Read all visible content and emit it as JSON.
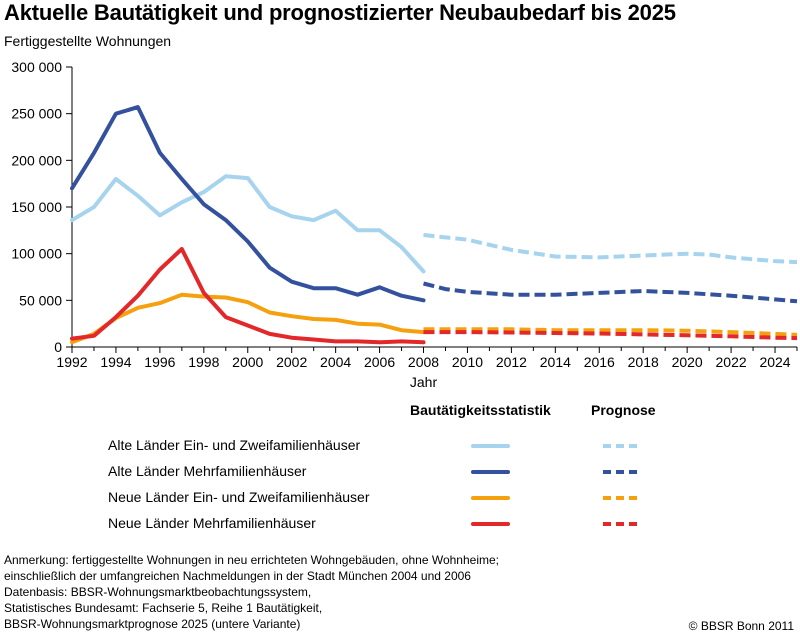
{
  "title": "Aktuelle Bautätigkeit und prognostizierter Neubaubedarf bis 2025",
  "ylabel": "Fertiggestellte Wohnungen",
  "xlabel": "Jahr",
  "legend": {
    "header_actual": "Bautätigkeitsstatistik",
    "header_forecast": "Prognose"
  },
  "footnotes": [
    "Anmerkung: fertiggestellte Wohnungen in neu errichteten Wohngebäuden, ohne Wohnheime;",
    "einschließlich der umfangreichen Nachmeldungen in der Stadt München 2004 und 2006",
    "Datenbasis: BBSR-Wohnungsmarktbeobachtungssystem,",
    "Statistisches Bundesamt: Fachserie 5, Reihe 1 Bautätigkeit,",
    "BBSR-Wohnungsmarktprognose 2025 (untere Variante)"
  ],
  "copyright": "© BBSR Bonn 2011",
  "chart_data": {
    "type": "line",
    "title": "Aktuelle Bautätigkeit und prognostizierter Neubaubedarf bis 2025",
    "ylabel": "Fertiggestellte Wohnungen",
    "xlabel": "Jahr",
    "xlim": [
      1992,
      2025
    ],
    "ylim": [
      0,
      300000
    ],
    "xticks": [
      1992,
      1994,
      1996,
      1998,
      2000,
      2002,
      2004,
      2006,
      2008,
      2010,
      2012,
      2014,
      2016,
      2018,
      2020,
      2022,
      2024
    ],
    "yticks": [
      0,
      50000,
      100000,
      150000,
      200000,
      250000,
      300000
    ],
    "ytick_labels": [
      "0",
      "50 000",
      "100 000",
      "150 000",
      "200 000",
      "250 000",
      "300 000"
    ],
    "grid": false,
    "legend_position": "bottom",
    "series": [
      {
        "name": "Alte Länder Ein- und Zweifamilienhäuser",
        "color": "#a6d3ee",
        "actual_x": [
          1992,
          1993,
          1994,
          1995,
          1996,
          1997,
          1998,
          1999,
          2000,
          2001,
          2002,
          2003,
          2004,
          2005,
          2006,
          2007,
          2008
        ],
        "actual_y": [
          136000,
          150000,
          180000,
          162000,
          141000,
          155000,
          166000,
          183000,
          181000,
          150000,
          140000,
          136000,
          146000,
          125000,
          125000,
          107000,
          81000
        ],
        "forecast_x": [
          2008,
          2010,
          2012,
          2014,
          2016,
          2018,
          2020,
          2021,
          2022,
          2024,
          2025
        ],
        "forecast_y": [
          120000,
          115000,
          104000,
          97000,
          96000,
          98000,
          100000,
          99000,
          96000,
          92000,
          91000
        ]
      },
      {
        "name": "Alte Länder Mehrfamilienhäuser",
        "color": "#34519d",
        "actual_x": [
          1992,
          1993,
          1994,
          1995,
          1996,
          1997,
          1998,
          1999,
          2000,
          2001,
          2002,
          2003,
          2004,
          2005,
          2006,
          2007,
          2008
        ],
        "actual_y": [
          170000,
          208000,
          250000,
          257000,
          208000,
          180000,
          153000,
          136000,
          113000,
          85000,
          70000,
          63000,
          63000,
          56000,
          64000,
          55000,
          50000
        ],
        "forecast_x": [
          2008,
          2009,
          2010,
          2012,
          2014,
          2016,
          2018,
          2020,
          2022,
          2024,
          2025
        ],
        "forecast_y": [
          68000,
          62000,
          59000,
          56000,
          56000,
          58000,
          60000,
          58000,
          55000,
          51000,
          49000
        ]
      },
      {
        "name": "Neue Länder Ein- und Zweifamilienhäuser",
        "color": "#f5a10f",
        "actual_x": [
          1992,
          1993,
          1994,
          1995,
          1996,
          1997,
          1998,
          1999,
          2000,
          2001,
          2002,
          2003,
          2004,
          2005,
          2006,
          2007,
          2008
        ],
        "actual_y": [
          5000,
          14000,
          31000,
          42000,
          47000,
          56000,
          54000,
          53000,
          48000,
          37000,
          33000,
          30000,
          29000,
          25000,
          24000,
          18000,
          16000
        ],
        "forecast_x": [
          2008,
          2010,
          2012,
          2014,
          2016,
          2018,
          2020,
          2022,
          2024,
          2025
        ],
        "forecast_y": [
          19000,
          19000,
          19000,
          18000,
          18000,
          18000,
          17500,
          16000,
          14000,
          13000
        ]
      },
      {
        "name": "Neue Länder Mehrfamilienhäuser",
        "color": "#e3282a",
        "actual_x": [
          1992,
          1993,
          1994,
          1995,
          1996,
          1997,
          1998,
          1999,
          2000,
          2001,
          2002,
          2003,
          2004,
          2005,
          2006,
          2007,
          2008
        ],
        "actual_y": [
          9000,
          12000,
          32000,
          55000,
          83000,
          105000,
          58000,
          32000,
          23000,
          14000,
          10000,
          8000,
          6000,
          6000,
          5000,
          6000,
          5000
        ],
        "forecast_x": [
          2008,
          2010,
          2012,
          2014,
          2016,
          2018,
          2020,
          2022,
          2024,
          2025
        ],
        "forecast_y": [
          16000,
          16000,
          15500,
          15000,
          14500,
          13500,
          12500,
          11500,
          10000,
          9500
        ]
      }
    ]
  }
}
